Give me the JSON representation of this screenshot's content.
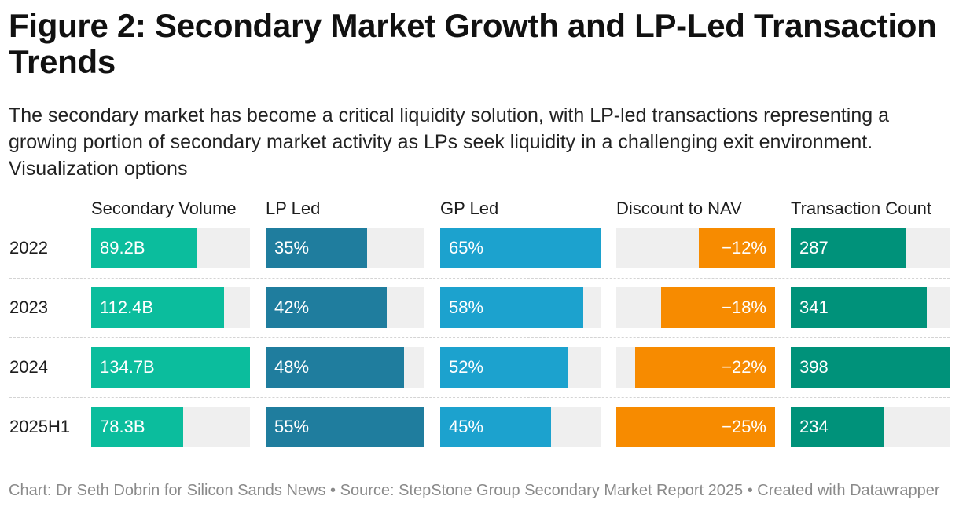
{
  "title": "Figure 2: Secondary Market Growth and LP-Led Transaction Trends",
  "subtitle": "The secondary market has become a critical liquidity solution, with LP-led transactions representing a growing portion of secondary market activity as LPs seek liquidity in a challenging exit environment. Visualization options",
  "footer": "Chart: Dr Seth Dobrin for Silicon Sands News • Source: StepStone Group Secondary Market Report 2025 • Created with Datawrapper",
  "chart_data": {
    "type": "table",
    "rows": [
      "2022",
      "2023",
      "2024",
      "2025H1"
    ],
    "columns": [
      {
        "header": "Secondary Volume",
        "labels": [
          "89.2B",
          "112.4B",
          "134.7B",
          "78.3B"
        ],
        "values": [
          89.2,
          112.4,
          134.7,
          78.3
        ],
        "max": 134.7,
        "color": "#0bbd9d",
        "align": "left"
      },
      {
        "header": "LP Led",
        "labels": [
          "35%",
          "42%",
          "48%",
          "55%"
        ],
        "values": [
          35,
          42,
          48,
          55
        ],
        "max": 55,
        "color": "#1f7d9e",
        "align": "left"
      },
      {
        "header": "GP Led",
        "labels": [
          "65%",
          "58%",
          "52%",
          "45%"
        ],
        "values": [
          65,
          58,
          52,
          45
        ],
        "max": 65,
        "color": "#1ca2ce",
        "align": "left"
      },
      {
        "header": "Discount to NAV",
        "labels": [
          "−12%",
          "−18%",
          "−22%",
          "−25%"
        ],
        "values": [
          -12,
          -18,
          -22,
          -25
        ],
        "max": 25,
        "color": "#f78b00",
        "align": "right"
      },
      {
        "header": "Transaction Count",
        "labels": [
          "287",
          "341",
          "398",
          "234"
        ],
        "values": [
          287,
          341,
          398,
          234
        ],
        "max": 398,
        "color": "#00927a",
        "align": "left"
      }
    ]
  }
}
